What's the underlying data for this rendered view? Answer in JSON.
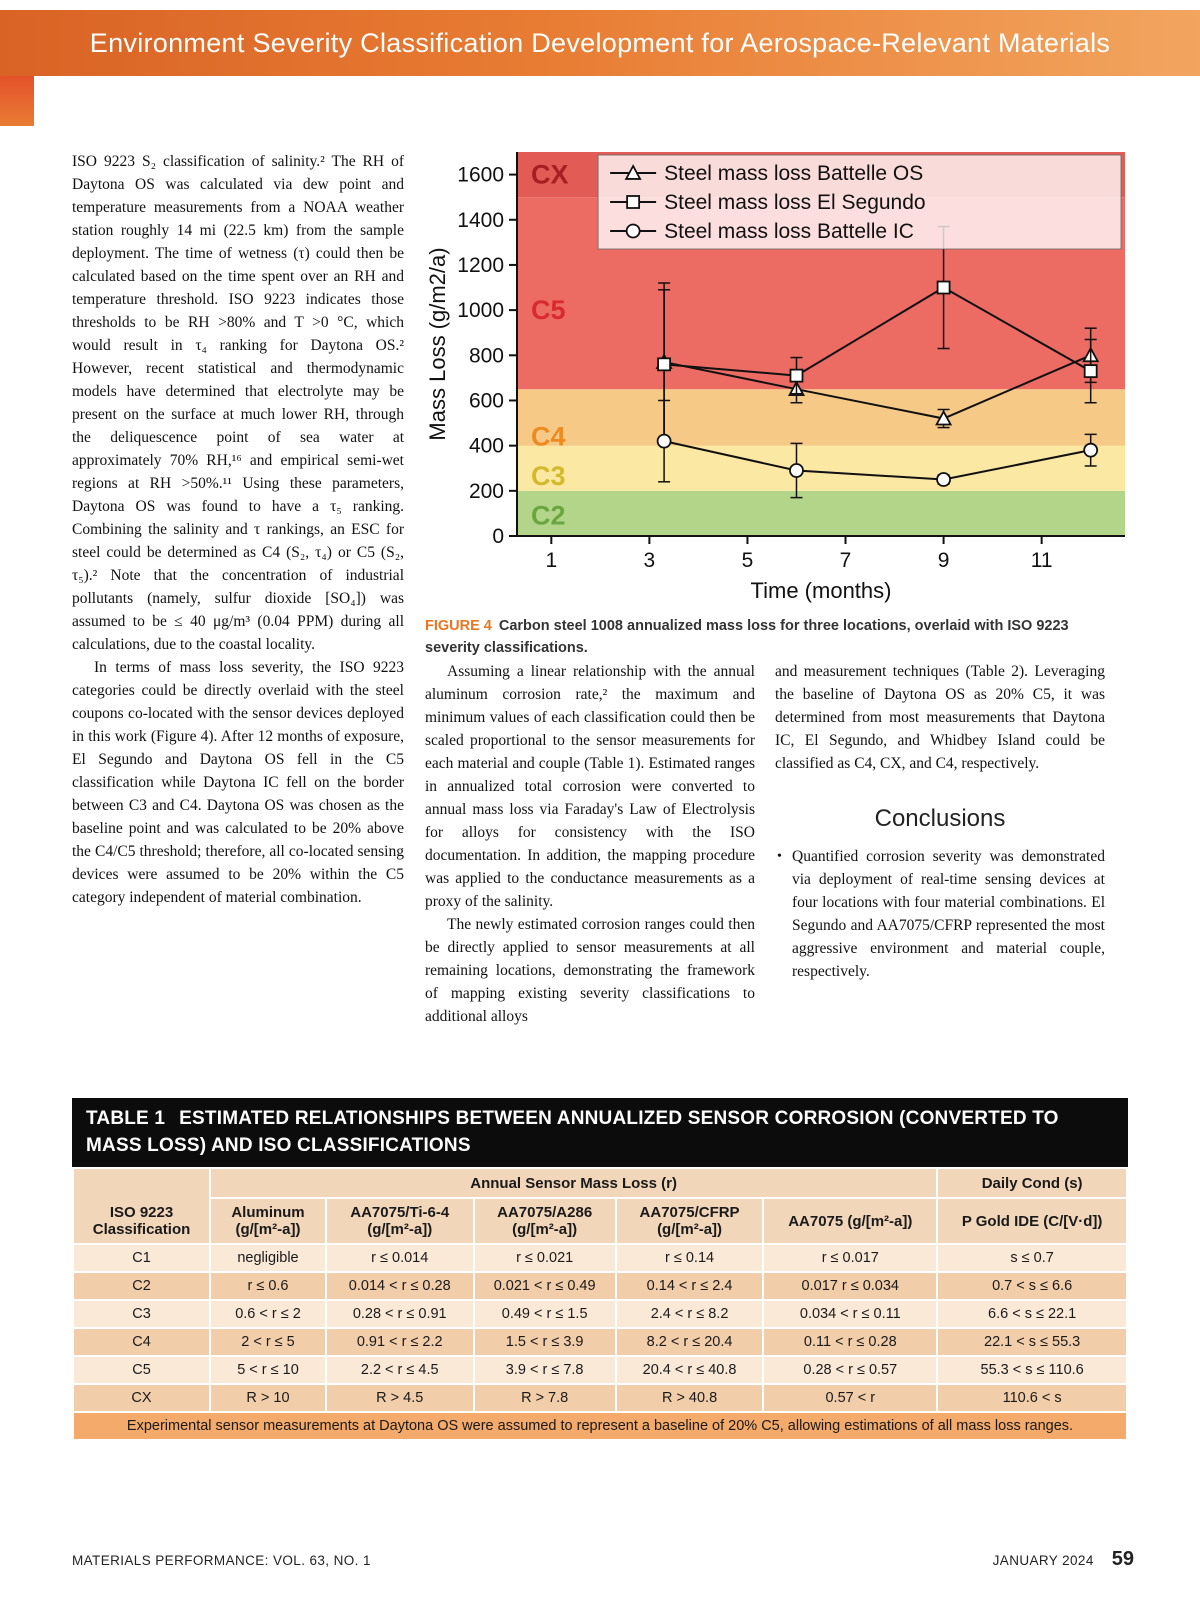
{
  "header": {
    "title": "Environment Severity Classification Development for Aerospace-Relevant Materials"
  },
  "article": {
    "left_paragraphs": [
      "ISO 9223 S₂ classification of salinity.² The RH of Daytona OS was calculated via dew point and temperature measurements from a NOAA weather station roughly 14 mi (22.5 km) from the sample deployment. The time of wetness (τ) could then be calculated based on the time spent over an RH and temperature threshold. ISO 9223 indicates those thresholds to be RH >80% and T >0 °C, which would result in τ₄ ranking for Daytona OS.² However, recent statistical and thermodynamic models have determined that electrolyte may be present on the surface at much lower RH, through the deliquescence point of sea water at approximately 70% RH,¹⁶ and empirical semi-wet regions at RH >50%.¹¹ Using these parameters, Daytona OS was found to have a τ₅ ranking. Combining the salinity and τ rankings, an ESC for steel could be determined as C4 (S₂, τ₄) or C5 (S₂, τ₅).² Note that the concentration of industrial pollutants (namely, sulfur dioxide [SO₄]) was assumed to be ≤ 40 μg/m³ (0.04 PPM) during all calculations, due to the coastal locality.",
      "In terms of mass loss severity, the ISO 9223 categories could be directly overlaid with the steel coupons co-located with the sensor devices deployed in this work (Figure 4). After 12 months of exposure, El Segundo and Daytona OS fell in the C5 classification while Daytona IC fell on the border between C3 and C4. Daytona OS was chosen as the baseline point and was calculated to be 20% above the C4/C5 threshold; therefore, all co-located sensing devices were assumed to be 20% within the C5 category independent of material combination."
    ],
    "mid_paragraphs": [
      "Assuming a linear relationship with the annual aluminum corrosion rate,² the maximum and minimum values of each classification could then be scaled proportional to the sensor measurements for each material and couple (Table 1). Estimated ranges in annualized total corrosion were converted to annual mass loss via Faraday's Law of Electrolysis for alloys for consistency with the ISO documentation. In addition, the mapping procedure was applied to the conductance measurements as a proxy of the salinity.",
      "The newly estimated corrosion ranges could then be directly applied to sensor measurements at all remaining locations, demonstrating the framework of mapping existing severity classifications to additional alloys"
    ],
    "right_paragraphs": [
      "and measurement techniques (Table 2). Leveraging the baseline of Daytona OS as 20% C5, it was determined from most measurements that Daytona IC, El Segundo, and Whidbey Island could be classified as C4, CX, and C4, respectively."
    ],
    "conclusions": {
      "title": "Conclusions",
      "bullets": [
        "Quantified corrosion severity was demonstrated via deployment of real-time sensing devices at four locations with four material combinations. El Segundo and AA7075/CFRP represented the most aggressive environment and material couple, respectively."
      ]
    }
  },
  "figure": {
    "label": "FIGURE 4",
    "caption": "Carbon steel 1008 annualized mass loss for three locations, overlaid with ISO 9223 severity classifications."
  },
  "chart_data": {
    "type": "line",
    "title": "",
    "xlabel": "Time (months)",
    "ylabel": "Mass Loss (g/m2/a)",
    "xlim": [
      0.3,
      12.7
    ],
    "ylim": [
      0,
      1700
    ],
    "xticks": [
      1,
      3,
      5,
      7,
      9,
      11
    ],
    "yticks": [
      0,
      200,
      400,
      600,
      800,
      1000,
      1200,
      1400,
      1600
    ],
    "grid": false,
    "legend_position": "top-right",
    "bands": [
      {
        "label": "C2",
        "from": 0,
        "to": 200,
        "color": "#b3d589",
        "label_color": "#6aa63f",
        "label_y": 90
      },
      {
        "label": "C3",
        "from": 200,
        "to": 400,
        "color": "#fbe8a2",
        "label_color": "#d4b92b",
        "label_y": 265
      },
      {
        "label": "C4",
        "from": 400,
        "to": 650,
        "color": "#f6c987",
        "label_color": "#ef8a1f",
        "label_y": 440
      },
      {
        "label": "C5",
        "from": 650,
        "to": 1500,
        "color": "#ec6b63",
        "label_color": "#d92a2e",
        "label_y": 1000
      },
      {
        "label": "CX",
        "from": 1500,
        "to": 1700,
        "color": "#e25b55",
        "label_color": "#a81e22",
        "label_y": 1600
      }
    ],
    "series": [
      {
        "name": "Steel mass loss Battelle OS",
        "marker": "triangle",
        "x": [
          3.3,
          6,
          9,
          12
        ],
        "y": [
          770,
          650,
          520,
          800
        ],
        "yerr": [
          350,
          60,
          40,
          120
        ]
      },
      {
        "name": "Steel mass loss El Segundo",
        "marker": "square",
        "x": [
          3.3,
          6,
          9,
          12
        ],
        "y": [
          760,
          710,
          1100,
          730
        ],
        "yerr": [
          330,
          80,
          270,
          140
        ]
      },
      {
        "name": "Steel mass loss Battelle IC",
        "marker": "circle",
        "x": [
          3.3,
          6,
          9,
          12
        ],
        "y": [
          420,
          290,
          250,
          380
        ],
        "yerr": [
          180,
          120,
          20,
          70
        ]
      }
    ]
  },
  "table": {
    "title_label": "TABLE 1",
    "title_text": "ESTIMATED RELATIONSHIPS BETWEEN ANNUALIZED SENSOR CORROSION (CONVERTED TO MASS LOSS) AND ISO CLASSIFICATIONS",
    "corner_header": "ISO 9223 Classification",
    "group_headers": [
      "Annual Sensor Mass Loss (r)",
      "Daily Cond (s)"
    ],
    "col_headers": [
      "Aluminum (g/[m²-a])",
      "AA7075/Ti-6-4 (g/[m²-a])",
      "AA7075/A286 (g/[m²-a])",
      "AA7075/CFRP (g/[m²-a])",
      "AA7075 (g/[m²-a])",
      "P Gold IDE (C/[V·d])"
    ],
    "rows": [
      [
        "C1",
        "negligible",
        "r ≤ 0.014",
        "r ≤ 0.021",
        "r ≤ 0.14",
        "r ≤ 0.017",
        "s ≤ 0.7"
      ],
      [
        "C2",
        "r ≤ 0.6",
        "0.014 < r ≤ 0.28",
        "0.021 < r ≤ 0.49",
        "0.14 < r ≤ 2.4",
        "0.017 r ≤ 0.034",
        "0.7 < s ≤ 6.6"
      ],
      [
        "C3",
        "0.6 < r ≤ 2",
        "0.28 < r ≤ 0.91",
        "0.49 < r ≤ 1.5",
        "2.4 < r ≤ 8.2",
        "0.034 < r ≤ 0.11",
        "6.6 < s ≤ 22.1"
      ],
      [
        "C4",
        "2 < r ≤ 5",
        "0.91 < r ≤ 2.2",
        "1.5 < r ≤ 3.9",
        "8.2 < r ≤ 20.4",
        "0.11 < r ≤ 0.28",
        "22.1 < s ≤ 55.3"
      ],
      [
        "C5",
        "5 < r ≤ 10",
        "2.2 < r ≤ 4.5",
        "3.9 < r ≤ 7.8",
        "20.4 < r ≤ 40.8",
        "0.28 < r ≤ 0.57",
        "55.3 < s ≤ 110.6"
      ],
      [
        "CX",
        "R > 10",
        "R > 4.5",
        "R > 7.8",
        "R > 40.8",
        "0.57 < r",
        "110.6 < s"
      ]
    ],
    "note": "Experimental sensor measurements at Daytona OS were assumed to represent a baseline of 20% C5, allowing estimations of all mass loss ranges."
  },
  "footer": {
    "left": "MATERIALS PERFORMANCE: VOL. 63, NO. 1",
    "right_issue": "JANUARY 2024",
    "page_number": "59"
  }
}
